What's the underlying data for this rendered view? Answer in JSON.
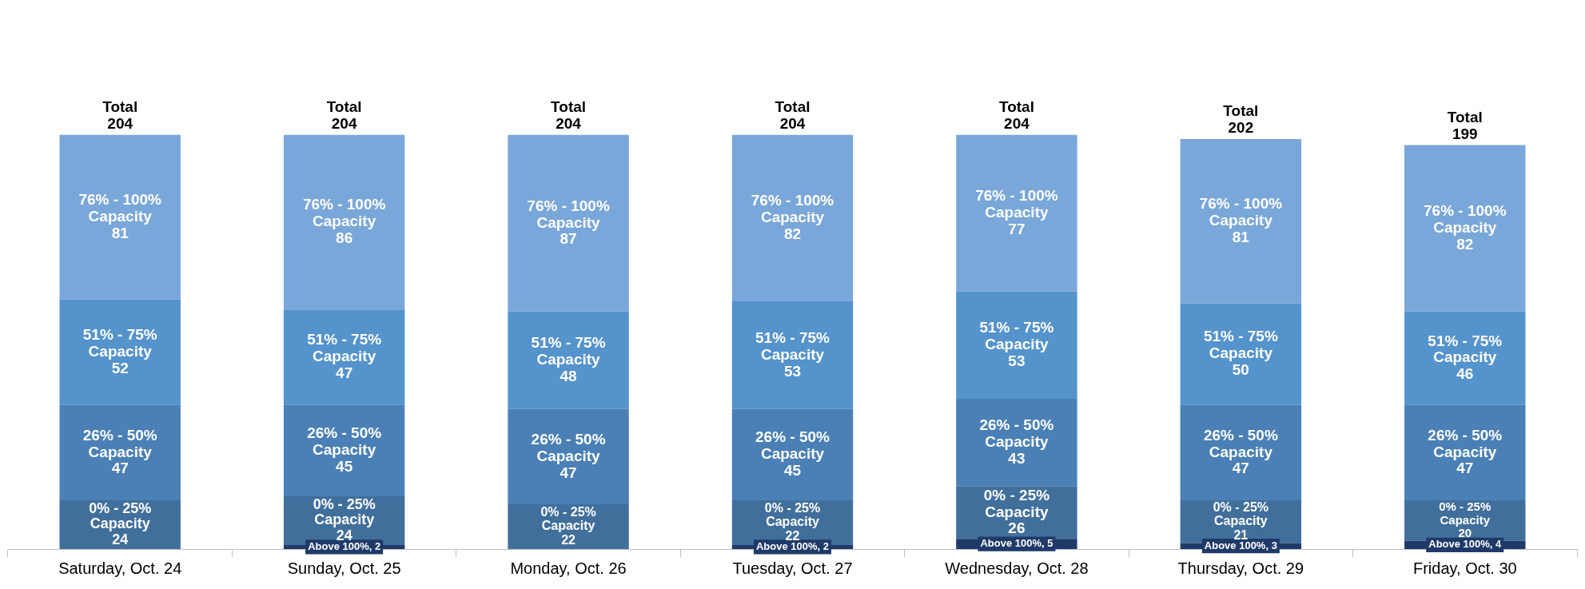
{
  "chart_data": {
    "type": "bar",
    "stacked": true,
    "tick_labels": "x",
    "legend": false,
    "grid": false,
    "categories": [
      "Saturday, Oct. 24",
      "Sunday, Oct. 25",
      "Monday, Oct. 26",
      "Tuesday, Oct. 27",
      "Wednesday, Oct. 28",
      "Thursday, Oct. 29",
      "Friday, Oct. 30"
    ],
    "series": [
      {
        "color": "#1f3a68",
        "values": [
          null,
          2,
          null,
          2,
          5,
          3,
          4
        ],
        "value_labels": [
          null,
          "Above 100%, 2",
          null,
          "Above 100%, 2",
          "Above 100%, 5",
          "Above 100%, 3",
          "Above 100%, 4"
        ]
      },
      {
        "color": "#416f9c",
        "values": [
          24,
          24,
          22,
          22,
          26,
          21,
          20
        ],
        "value_labels": [
          "0% - 25%\nCapacity\n24",
          "0% - 25%\nCapacity\n24",
          "0% - 25%\nCapacity\n22",
          "0% - 25%\nCapacity\n22",
          "0% - 25%\nCapacity\n26",
          "0% - 25%\nCapacity\n21",
          "0% - 25%\nCapacity\n20"
        ]
      },
      {
        "color": "#4a80b5",
        "values": [
          47,
          45,
          47,
          45,
          43,
          47,
          47
        ],
        "value_labels": [
          "26% - 50%\nCapacity\n47",
          "26% - 50%\nCapacity\n45",
          "26% - 50%\nCapacity\n47",
          "26% - 50%\nCapacity\n45",
          "26% - 50%\nCapacity\n43",
          "26% - 50%\nCapacity\n47",
          "26% - 50%\nCapacity\n47"
        ]
      },
      {
        "color": "#5593cc",
        "values": [
          52,
          47,
          48,
          53,
          53,
          50,
          46
        ],
        "value_labels": [
          "51% - 75%\nCapacity\n52",
          "51% - 75%\nCapacity\n47",
          "51% - 75%\nCapacity\n48",
          "51% - 75%\nCapacity\n53",
          "51% - 75%\nCapacity\n53",
          "51% - 75%\nCapacity\n50",
          "51% - 75%\nCapacity\n46"
        ]
      },
      {
        "color": "#7aa7d9",
        "values": [
          81,
          86,
          87,
          82,
          77,
          81,
          82
        ],
        "value_labels": [
          "76% - 100%\nCapacity\n81",
          "76% - 100%\nCapacity\n86",
          "76% - 100%\nCapacity\n87",
          "76% - 100%\nCapacity\n82",
          "76% - 100%\nCapacity\n77",
          "76% - 100%\nCapacity\n81",
          "76% - 100%\nCapacity\n82"
        ]
      }
    ],
    "totals": [
      "Total\n204",
      "Total\n204",
      "Total\n204",
      "Total\n204",
      "Total\n204",
      "Total\n202",
      "Total\n199"
    ]
  }
}
